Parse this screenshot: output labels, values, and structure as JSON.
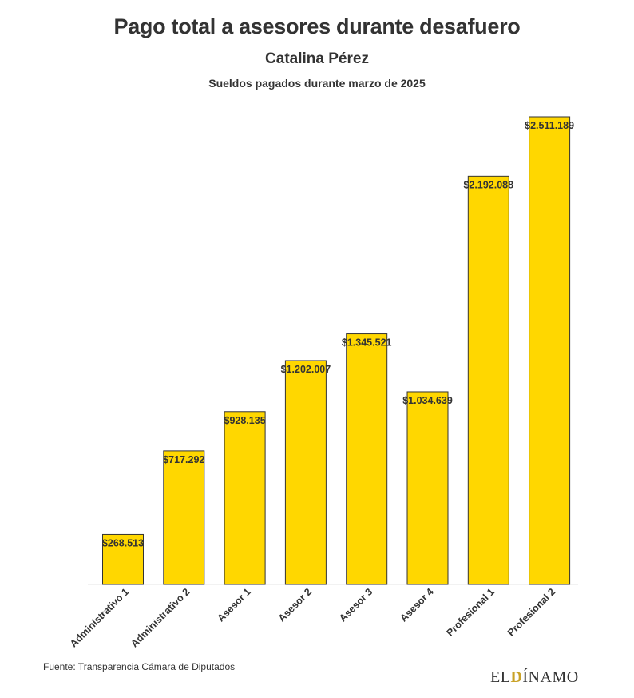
{
  "header": {
    "title": "Pago total a asesores durante desafuero",
    "subtitle": "Catalina Pérez",
    "description": "Sueldos pagados durante marzo de 2025"
  },
  "footer": {
    "source": "Fuente: Transparencia Cámara de Diputados",
    "logo_left": "EL",
    "logo_mark": "D",
    "logo_right": "ÍNAMO"
  },
  "colors": {
    "bar_fill": "#FFD700",
    "bar_stroke": "#333333",
    "text": "#333333",
    "logo_accent": "#c9a227"
  },
  "chart_data": {
    "type": "bar",
    "categories": [
      "Administrativo 1",
      "Administrativo 2",
      "Asesor 1",
      "Asesor 2",
      "Asesor 3",
      "Asesor 4",
      "Profesional 1",
      "Profesional 2"
    ],
    "values": [
      268513,
      717292,
      928135,
      1202007,
      1345521,
      1034639,
      2192088,
      2511189
    ],
    "data_labels": [
      "$268.513",
      "$717.292",
      "$928.135",
      "$1.202.007",
      "$1.345.521",
      "$1.034.639",
      "$2.192.088",
      "$2.511.189"
    ],
    "title": "Pago total a asesores durante desafuero",
    "xlabel": "",
    "ylabel": "",
    "ylim": [
      0,
      2511189
    ],
    "grid": false,
    "legend": "none"
  }
}
